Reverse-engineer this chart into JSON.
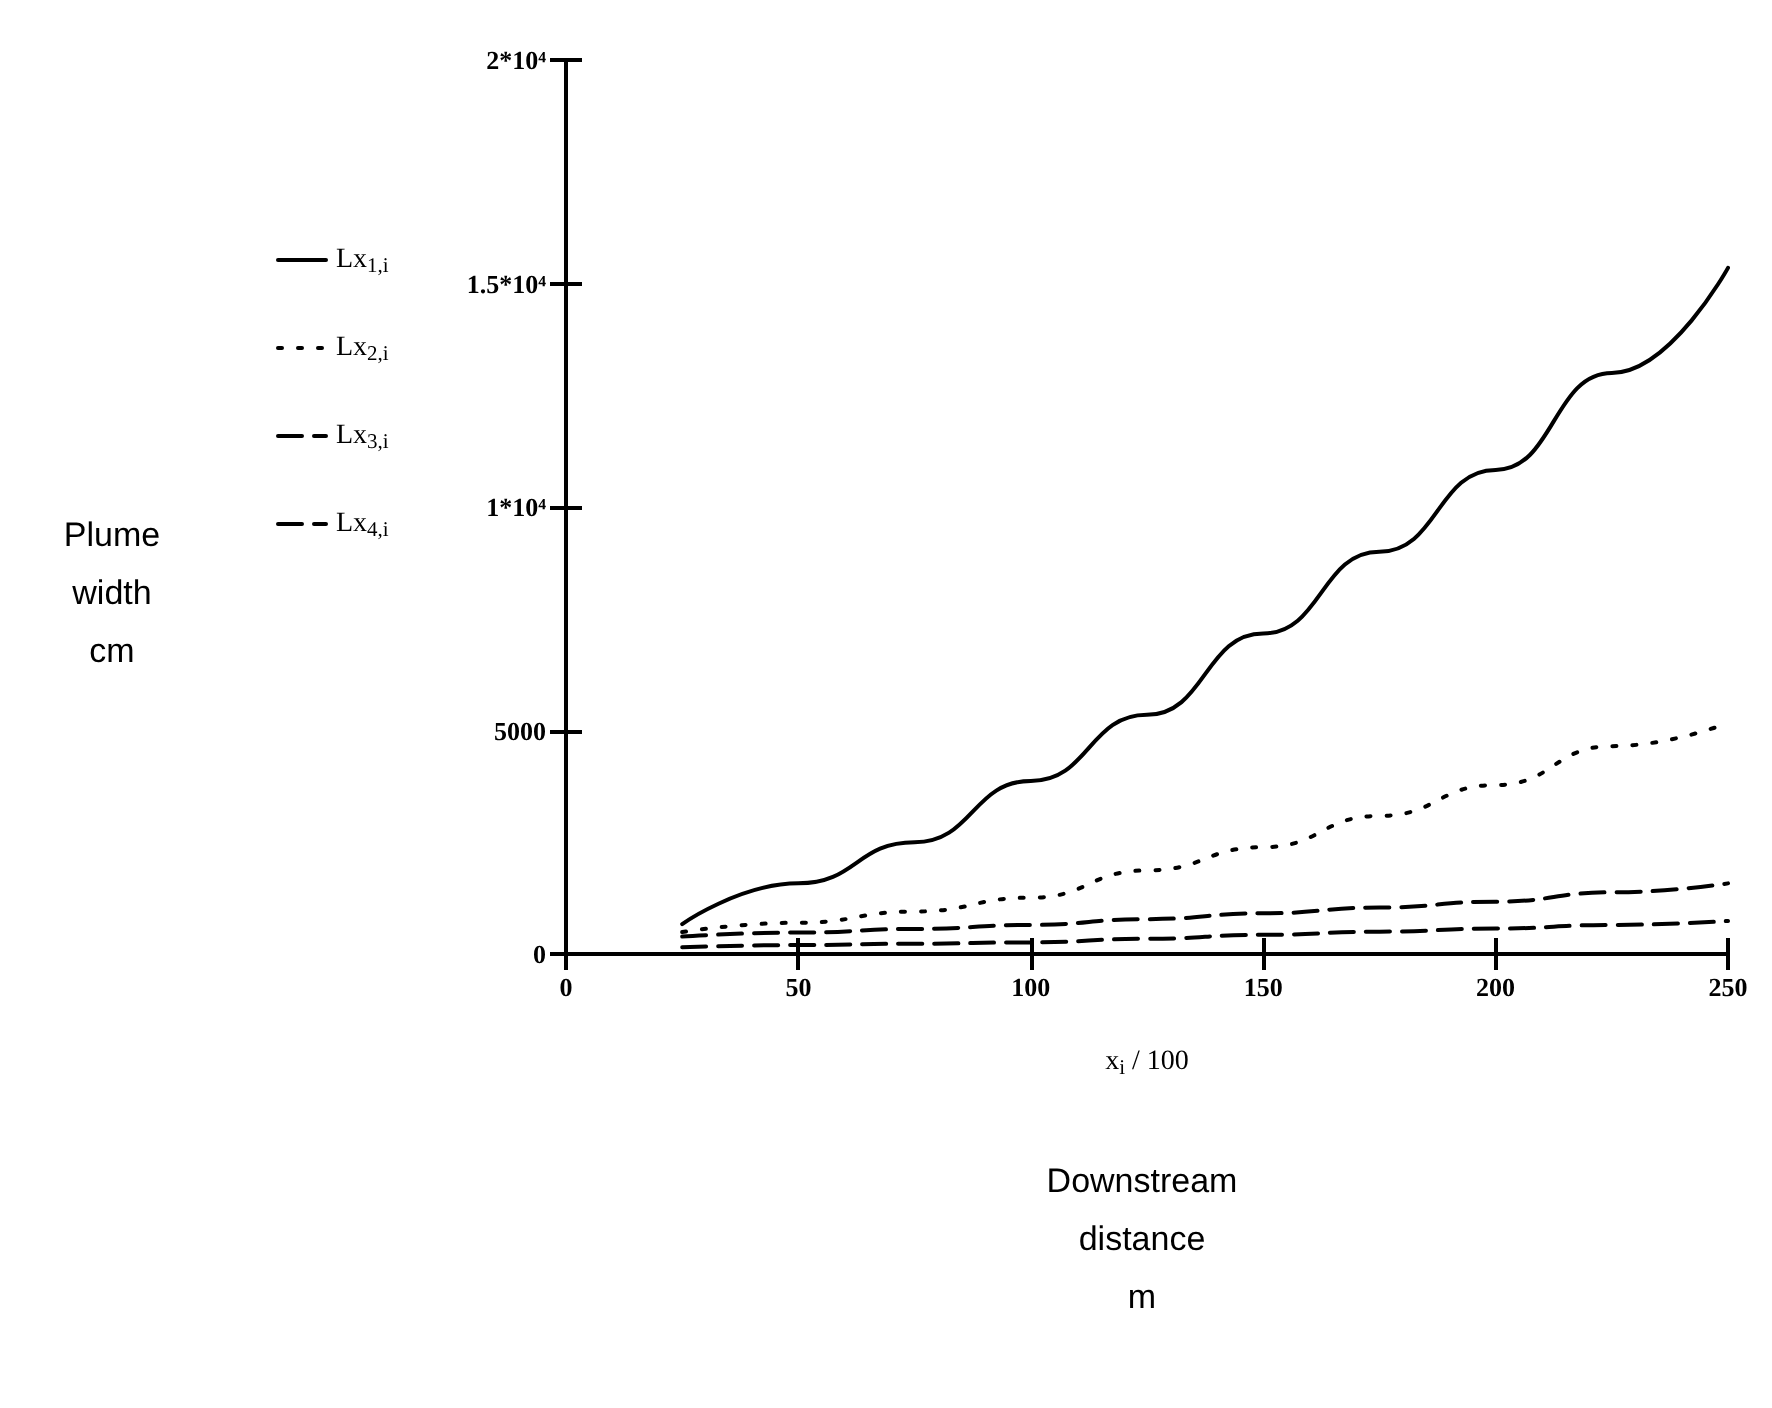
{
  "chart_data": {
    "type": "line",
    "xlabel": "x$_{i}$ / 100",
    "annotations": [
      "Downstream\ndistance\nm",
      "Plume\nwidth\ncm"
    ],
    "x": [
      25,
      50,
      75,
      100,
      125,
      150,
      175,
      200,
      225,
      250
    ],
    "series": [
      {
        "name": "Lx$_{1,i}$",
        "color": "#000000",
        "line_style": "solid",
        "values": [
          670,
          1580,
          2500,
          3870,
          5350,
          7170,
          9000,
          10830,
          13000,
          15350
        ]
      },
      {
        "name": "Lx$_{2,i}$",
        "color": "#000000",
        "line_style": "dotted",
        "values": [
          490,
          700,
          950,
          1260,
          1870,
          2390,
          3090,
          3780,
          4650,
          5170
        ]
      },
      {
        "name": "Lx$_{3,i}$",
        "color": "#000000",
        "line_style": "dashed",
        "values": [
          390,
          480,
          560,
          650,
          780,
          910,
          1040,
          1170,
          1380,
          1580
        ]
      },
      {
        "name": "Lx$_{4,i}$",
        "color": "#000000",
        "line_style": "dashed",
        "values": [
          150,
          200,
          230,
          260,
          340,
          430,
          500,
          570,
          650,
          740
        ]
      }
    ],
    "xlim": [
      0,
      250
    ],
    "xticks": [
      0,
      50,
      100,
      150,
      200,
      250
    ],
    "ylim": [
      0,
      20000
    ],
    "yticks": [
      0,
      5000,
      {
        "value": 10000,
        "label": "1*10⁴"
      },
      {
        "value": 15000,
        "label": "1.5*10⁴"
      },
      {
        "value": 20000,
        "label": "2*10⁴"
      }
    ],
    "grid": false,
    "legend": "left",
    "marker": "none"
  }
}
